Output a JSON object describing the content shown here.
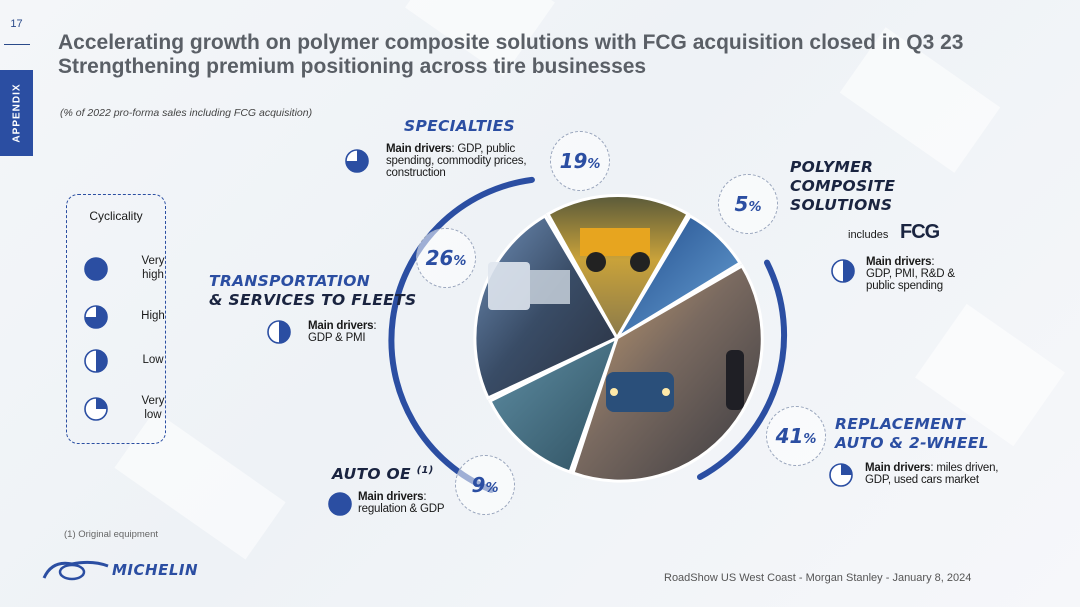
{
  "page_number": "17",
  "side_tab": "APPENDIX",
  "title_line1": "Accelerating growth on polymer composite solutions with FCG acquisition closed in Q3 23",
  "title_line2": "Strengthening premium positioning across tire businesses",
  "subnote": "(% of 2022 pro-forma sales including FCG acquisition)",
  "cyclicality": {
    "title": "Cyclicality",
    "levels": [
      {
        "label_l1": "Very",
        "label_l2": "high",
        "fill": 1.0
      },
      {
        "label_l1": "High",
        "label_l2": "",
        "fill": 0.75
      },
      {
        "label_l1": "Low",
        "label_l2": "",
        "fill": 0.5
      },
      {
        "label_l1": "Very",
        "label_l2": "low",
        "fill": 0.25
      }
    ]
  },
  "segments": {
    "specialties": {
      "title": "SPECIALTIES",
      "pct": "19",
      "drivers_label": "Main drivers",
      "drivers_l1": ": GDP, public",
      "drivers_l2": "spending, commodity prices,",
      "drivers_l3": "construction",
      "cyclicality": 0.75
    },
    "polymer": {
      "title_l1": "POLYMER",
      "title_l2": "COMPOSITE",
      "title_l3": "SOLUTIONS",
      "pct": "5",
      "includes": "includes",
      "fcg": "FCG",
      "drivers_label": "Main drivers",
      "drivers_l1": ":",
      "drivers_l2": "GDP, PMI, R&D &",
      "drivers_l3": "public spending",
      "cyclicality": 0.5
    },
    "transportation": {
      "title_l1": "TRANSPORTATION",
      "title_l2": "& SERVICES TO FLEETS",
      "pct": "26",
      "drivers_label": "Main drivers",
      "drivers_l1": ":",
      "drivers_l2": "GDP & PMI",
      "cyclicality": 0.5
    },
    "replacement": {
      "title_l1": "REPLACEMENT",
      "title_l2": "AUTO & 2-WHEEL",
      "pct": "41",
      "drivers_label": "Main drivers",
      "drivers_l1": ": miles driven,",
      "drivers_l2": "GDP, used cars market",
      "cyclicality": 0.25
    },
    "autooe": {
      "title": "AUTO OE",
      "sup": "(1)",
      "pct": "9",
      "drivers_label": "Main drivers",
      "drivers_l1": ":",
      "drivers_l2": "regulation & GDP",
      "cyclicality": 1.0
    }
  },
  "pct_unit": "%",
  "footnote": "(1)   Original equipment",
  "footer": "RoadShow US West Coast - Morgan Stanley - January 8, 2024",
  "logo_text": "MICHELIN",
  "colors": {
    "brand_blue": "#2b4ea2",
    "title_gray": "#5a5f66"
  }
}
